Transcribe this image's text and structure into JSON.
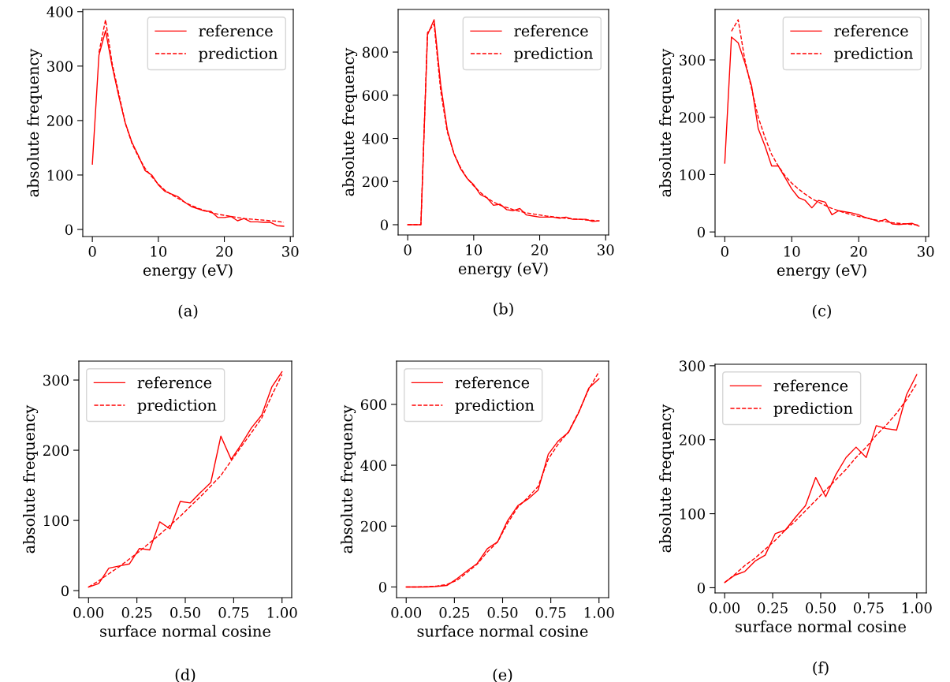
{
  "chart_data": [
    {
      "type": "line",
      "xlabel": "energy (eV)",
      "ylabel": "absolute frequency",
      "annotations": [
        "(a)"
      ],
      "legend": "top right",
      "xlim": [
        -1.45,
        30.45
      ],
      "xticks": [
        0,
        10,
        20,
        30
      ],
      "ylim": [
        -13,
        404
      ],
      "yticks": [
        0,
        100,
        200,
        300,
        400
      ],
      "x": [
        0,
        1,
        2,
        3,
        4,
        5,
        6,
        7,
        8,
        9,
        10,
        11,
        12,
        13,
        14,
        15,
        16,
        17,
        18,
        19,
        20,
        21,
        22,
        23,
        24,
        25,
        26,
        27,
        28,
        29
      ],
      "series": [
        {
          "name": "reference",
          "color": "#ff0000",
          "line_style": "solid",
          "values": [
            120,
            320,
            365,
            300,
            245,
            195,
            160,
            135,
            108,
            100,
            82,
            70,
            65,
            60,
            50,
            42,
            38,
            34,
            33,
            22,
            22,
            24,
            16,
            20,
            14,
            14,
            13,
            13,
            7,
            6
          ]
        },
        {
          "name": "prediction",
          "color": "#ff0000",
          "line_style": "dashed",
          "values": [
            null,
            325,
            385,
            305,
            250,
            195,
            158,
            133,
            112,
            97,
            83,
            72,
            64,
            57,
            50,
            44,
            39,
            35,
            31,
            28,
            26,
            24,
            22,
            20,
            19,
            18,
            17,
            16,
            15,
            13
          ]
        }
      ]
    },
    {
      "type": "line",
      "xlabel": "energy (eV)",
      "ylabel": "absolute frequency",
      "annotations": [
        "(b)"
      ],
      "legend": "top right",
      "xlim": [
        -1.45,
        30.45
      ],
      "xticks": [
        0,
        10,
        20,
        30
      ],
      "ylim": [
        -47.5,
        997.5
      ],
      "yticks": [
        0,
        200,
        400,
        600,
        800
      ],
      "x": [
        0,
        1,
        2,
        3,
        4,
        5,
        6,
        7,
        8,
        9,
        10,
        11,
        12,
        13,
        14,
        15,
        16,
        17,
        18,
        19,
        20,
        21,
        22,
        23,
        24,
        25,
        26,
        27,
        28,
        29
      ],
      "series": [
        {
          "name": "reference",
          "color": "#ff0000",
          "line_style": "solid",
          "values": [
            0,
            0,
            0,
            880,
            950,
            650,
            440,
            330,
            260,
            215,
            185,
            140,
            125,
            90,
            95,
            70,
            65,
            75,
            45,
            40,
            35,
            35,
            35,
            30,
            35,
            25,
            25,
            25,
            15,
            18
          ]
        },
        {
          "name": "prediction",
          "color": "#ff0000",
          "line_style": "dashed",
          "values": [
            0,
            0,
            0,
            890,
            930,
            620,
            430,
            330,
            265,
            215,
            180,
            150,
            125,
            105,
            90,
            80,
            70,
            62,
            55,
            50,
            45,
            40,
            37,
            33,
            30,
            27,
            25,
            22,
            20,
            17
          ]
        }
      ]
    },
    {
      "type": "line",
      "xlabel": "energy (eV)",
      "ylabel": "absolute frequency",
      "annotations": [
        "(c)"
      ],
      "legend": "top right",
      "xlim": [
        -1.45,
        30.45
      ],
      "xticks": [
        0,
        10,
        20,
        30
      ],
      "ylim": [
        -8,
        388
      ],
      "yticks": [
        0,
        100,
        200,
        300
      ],
      "x": [
        0,
        1,
        2,
        3,
        4,
        5,
        6,
        7,
        8,
        9,
        10,
        11,
        12,
        13,
        14,
        15,
        16,
        17,
        18,
        19,
        20,
        21,
        22,
        23,
        24,
        25,
        26,
        27,
        28,
        29
      ],
      "series": [
        {
          "name": "reference",
          "color": "#ff0000",
          "line_style": "solid",
          "values": [
            120,
            340,
            330,
            295,
            255,
            180,
            150,
            115,
            115,
            95,
            75,
            60,
            55,
            42,
            55,
            52,
            30,
            37,
            35,
            33,
            30,
            25,
            22,
            18,
            22,
            14,
            13,
            14,
            15,
            10
          ]
        },
        {
          "name": "prediction",
          "color": "#ff0000",
          "line_style": "dashed",
          "values": [
            null,
            350,
            370,
            300,
            250,
            200,
            165,
            135,
            115,
            98,
            85,
            75,
            66,
            58,
            52,
            46,
            41,
            37,
            33,
            30,
            27,
            25,
            22,
            20,
            18,
            16,
            15,
            14,
            13,
            12
          ]
        }
      ]
    },
    {
      "type": "line",
      "xlabel": "surface normal cosine",
      "ylabel": "absolute frequency",
      "annotations": [
        "(d)"
      ],
      "legend": "top left",
      "xlim": [
        -0.05,
        1.05
      ],
      "xticks": [
        {
          "value": 0,
          "label": "0.00"
        },
        {
          "value": 0.25,
          "label": "0.25"
        },
        {
          "value": 0.5,
          "label": "0.50"
        },
        {
          "value": 0.75,
          "label": "0.75"
        },
        {
          "value": 1,
          "label": "1.00"
        }
      ],
      "ylim": [
        -10,
        327
      ],
      "yticks": [
        0,
        100,
        200,
        300
      ],
      "x": [
        0,
        0.053,
        0.105,
        0.158,
        0.211,
        0.263,
        0.316,
        0.368,
        0.421,
        0.474,
        0.526,
        0.579,
        0.632,
        0.684,
        0.737,
        0.789,
        0.842,
        0.895,
        0.947,
        1
      ],
      "series": [
        {
          "name": "reference",
          "color": "#ff0000",
          "line_style": "solid",
          "values": [
            5,
            10,
            32,
            35,
            38,
            60,
            58,
            98,
            88,
            127,
            125,
            140,
            154,
            220,
            187,
            208,
            232,
            250,
            290,
            312
          ]
        },
        {
          "name": "prediction",
          "color": "#ff0000",
          "line_style": "dashed",
          "values": [
            5,
            14,
            24,
            34,
            45,
            56,
            68,
            80,
            93,
            106,
            120,
            134,
            149,
            164,
            185,
            205,
            225,
            246,
            278,
            308
          ]
        }
      ]
    },
    {
      "type": "line",
      "xlabel": "surface normal cosine",
      "ylabel": "absolute frequency",
      "annotations": [
        "(e)"
      ],
      "legend": "top left",
      "xlim": [
        -0.05,
        1.05
      ],
      "xticks": [
        {
          "value": 0,
          "label": "0.00"
        },
        {
          "value": 0.25,
          "label": "0.25"
        },
        {
          "value": 0.5,
          "label": "0.50"
        },
        {
          "value": 0.75,
          "label": "0.75"
        },
        {
          "value": 1,
          "label": "1.00"
        }
      ],
      "ylim": [
        -35,
        742
      ],
      "yticks": [
        0,
        200,
        400,
        600
      ],
      "x": [
        0,
        0.053,
        0.105,
        0.158,
        0.211,
        0.263,
        0.316,
        0.368,
        0.421,
        0.474,
        0.526,
        0.579,
        0.632,
        0.684,
        0.737,
        0.789,
        0.842,
        0.895,
        0.947,
        1
      ],
      "series": [
        {
          "name": "reference",
          "color": "#ff0000",
          "line_style": "solid",
          "values": [
            0,
            0,
            0,
            2,
            5,
            27,
            53,
            77,
            126,
            148,
            218,
            267,
            289,
            318,
            436,
            480,
            508,
            573,
            653,
            684
          ]
        },
        {
          "name": "prediction",
          "color": "#ff0000",
          "line_style": "dashed",
          "values": [
            0,
            0,
            1,
            3,
            8,
            22,
            48,
            75,
            115,
            148,
            210,
            262,
            295,
            330,
            420,
            470,
            510,
            575,
            650,
            707
          ]
        }
      ]
    },
    {
      "type": "line",
      "xlabel": "surface normal cosine",
      "ylabel": "absolute frequency",
      "annotations": [
        "(f)"
      ],
      "legend": "top left",
      "xlim": [
        -0.05,
        1.05
      ],
      "xticks": [
        {
          "value": 0,
          "label": "0.00"
        },
        {
          "value": 0.25,
          "label": "0.25"
        },
        {
          "value": 0.5,
          "label": "0.50"
        },
        {
          "value": 0.75,
          "label": "0.75"
        },
        {
          "value": 1,
          "label": "1.00"
        }
      ],
      "ylim": [
        -7,
        302
      ],
      "yticks": [
        0,
        100,
        200,
        300
      ],
      "x": [
        0,
        0.053,
        0.105,
        0.158,
        0.211,
        0.263,
        0.316,
        0.368,
        0.421,
        0.474,
        0.526,
        0.579,
        0.632,
        0.684,
        0.737,
        0.789,
        0.842,
        0.895,
        0.947,
        1
      ],
      "series": [
        {
          "name": "reference",
          "color": "#ff0000",
          "line_style": "solid",
          "values": [
            7,
            17,
            22,
            36,
            44,
            73,
            78,
            95,
            111,
            149,
            123,
            153,
            176,
            190,
            176,
            219,
            215,
            213,
            261,
            288
          ]
        },
        {
          "name": "prediction",
          "color": "#ff0000",
          "line_style": "dashed",
          "values": [
            7,
            18,
            30,
            40,
            52,
            64,
            78,
            90,
            104,
            118,
            132,
            146,
            160,
            176,
            190,
            206,
            220,
            236,
            254,
            276
          ]
        }
      ]
    }
  ]
}
